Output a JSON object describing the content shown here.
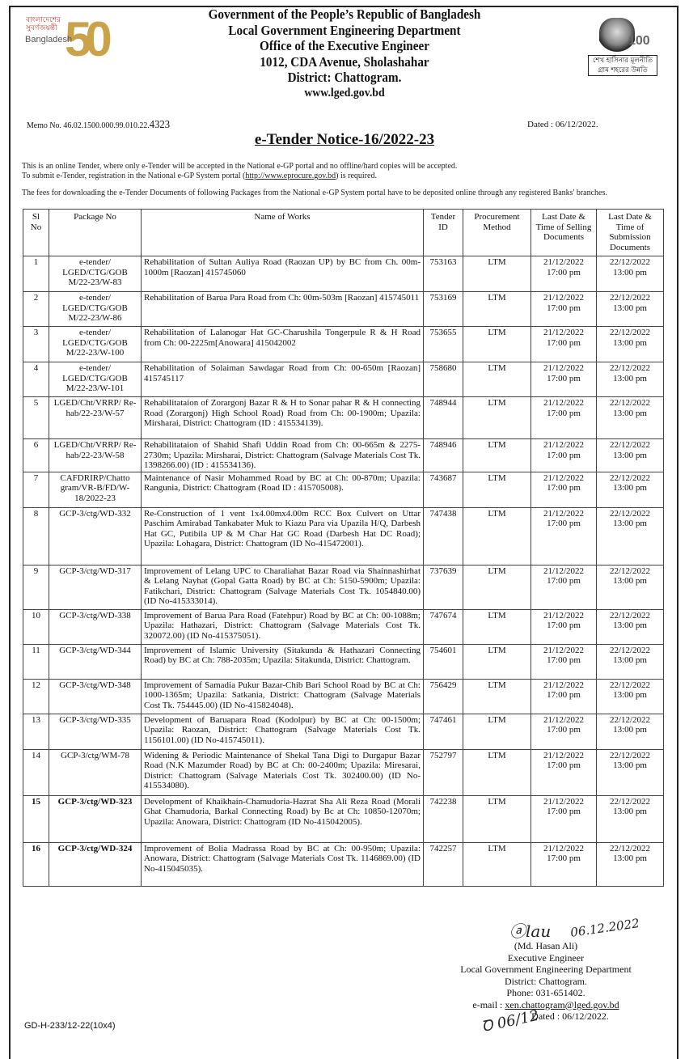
{
  "header": {
    "lines": [
      "Government of the People’s Republic of Bangladesh",
      "Local Government Engineering Department",
      "Office of the Executive Engineer",
      "1012, CDA Avenue, Sholashahar",
      "District: Chattogram."
    ],
    "website": "www.lged.gov.bd",
    "logo_left": {
      "bengali": "বাংলাদেশের সুবর্ণজয়ন্তী",
      "text": "Bangladesh",
      "number": "50"
    },
    "logo_right": {
      "number": "100",
      "slogan_line1": "শেখ হাসিনার মূলনীতি",
      "slogan_line2": "গ্রাম শহরের উন্নতি"
    }
  },
  "memo": {
    "prefix": "Memo No. 46.02.1500.000.99.010.22.",
    "number": "4323",
    "dated": "Dated : 06/12/2022."
  },
  "title": "e-Tender Notice-16/2022-23",
  "intro": {
    "line1": "This is an online Tender, where only e-Tender will be accepted in the National e-GP portal and no offline/hard copies will be accepted.",
    "line2_pre": "To submit e-Tender, registration in the National e-GP System portal (",
    "line2_link": "http://www.eprocure.gov.bd",
    "line2_post": ") is required.",
    "line3": "The fees for downloading the e-Tender Documents of following Packages from the National e-GP System portal have to be deposited online through any registered Banks' branches."
  },
  "table": {
    "headers": [
      "Sl No",
      "Package No",
      "Name of Works",
      "Tender ID",
      "Procurement Method",
      "Last Date & Time of Selling Documents",
      "Last Date & Time of Submission Documents"
    ],
    "rows": [
      {
        "sl": "1",
        "pkg": "e-tender/ LGED/CTG/GOB M/22-23/W-83",
        "name": "Rehabilitation of Sultan Auliya Road (Raozan UP) by BC from Ch. 00m-1000m [Raozan] 415745060",
        "id": "753163",
        "method": "LTM",
        "sell": "21/12/2022 17:00 pm",
        "submit": "22/12/2022 13:00 pm"
      },
      {
        "sl": "2",
        "pkg": "e-tender/ LGED/CTG/GOB M/22-23/W-86",
        "name": "Rehabilitation of Barua Para Road from Ch: 00m-503m [Raozan] 415745011",
        "id": "753169",
        "method": "LTM",
        "sell": "21/12/2022 17:00 pm",
        "submit": "22/12/2022 13:00 pm"
      },
      {
        "sl": "3",
        "pkg": "e-tender/ LGED/CTG/GOB M/22-23/W-100",
        "name": "Rehabilitation of Lalanogar Hat GC-Charushila Tongerpule R & H Road from Ch: 00-2225m[Anowara] 415042002",
        "id": "753655",
        "method": "LTM",
        "sell": "21/12/2022 17:00 pm",
        "submit": "22/12/2022 13:00 pm"
      },
      {
        "sl": "4",
        "pkg": "e-tender/ LGED/CTG/GOB M/22-23/W-101",
        "name": "Rehabilitation of Solaiman Sawdagar Road from Ch: 00-650m [Raozan] 415745117",
        "id": "758680",
        "method": "LTM",
        "sell": "21/12/2022 17:00 pm",
        "submit": "22/12/2022 13:00 pm"
      },
      {
        "sl": "5",
        "pkg": "LGED/Cht/VRRP/ Re-hab/22-23/W-57",
        "name": "Rehabilitataion of Zorargonj Bazar R & H to Sonar pahar R & H connecting Road (Zorargonj) High School Road) Road from Ch: 00-1900m; Upazila: Mirsharai, District: Chattogram (ID : 415534139).",
        "id": "748944",
        "method": "LTM",
        "sell": "21/12/2022 17:00 pm",
        "submit": "22/12/2022 13:00 pm"
      },
      {
        "sl": "6",
        "pkg": "LGED/Cht/VRRP/ Re-hab/22-23/W-58",
        "name": "Rehabilitataion of Shahid Shafi Uddin Road from Ch: 00-665m & 2275-2730m; Upazila: Mirsharai, District: Chattogram (Salvage Materials Cost Tk. 1398266.00) (ID : 415534136).",
        "id": "748946",
        "method": "LTM",
        "sell": "21/12/2022 17:00 pm",
        "submit": "22/12/2022 13:00 pm"
      },
      {
        "sl": "7",
        "pkg": "CAFDRIRP/Chatto gram/VR-B/FD/W-18/2022-23",
        "name": "Maintenance of Nasir Mohammed Road by BC at Ch: 00-870m; Upazila: Rangunia, District: Chattogram (Road ID : 415705008).",
        "id": "743687",
        "method": "LTM",
        "sell": "21/12/2022 17:00 pm",
        "submit": "22/12/2022 13:00 pm"
      },
      {
        "sl": "8",
        "pkg": "GCP-3/ctg/WD-332",
        "name": "Re-Construction of 1 vent 1x4.00mx4.00m RCC Box Culvert on Uttar Paschim Amirabad Tankabater Muk to Kiazu Para via Upazila H/Q, Darbesh Hat GC, Putibila UP & M Char Hat GC Road (Darbesh Hat DC Road); Upazila: Lohagara, District: Chattogram (ID No-415472001).",
        "id": "747438",
        "method": "LTM",
        "sell": "21/12/2022 17:00 pm",
        "submit": "22/12/2022 13:00 pm"
      },
      {
        "sl": "9",
        "pkg": "GCP-3/ctg/WD-317",
        "name": "Improvement of Lelang UPC to Charaliahat Bazar Road via Shainnashirhat & Lelang Nayhat (Gopal Gatta Road) by BC at Ch: 5150-5900m; Upazila: Fatikchari, District: Chattogram (Salvage Materials Cost Tk. 1054840.00) (ID No-415333014).",
        "id": "737639",
        "method": "LTM",
        "sell": "21/12/2022 17:00 pm",
        "submit": "22/12/2022 13:00 pm"
      },
      {
        "sl": "10",
        "pkg": "GCP-3/ctg/WD-338",
        "name": "Improvement of Barua Para Road (Fatehpur) Road by BC at Ch: 00-1088m; Upazila: Hathazari, District: Chattogram (Salvage Materials Cost Tk. 320072.00) (ID No-415375051).",
        "id": "747674",
        "method": "LTM",
        "sell": "21/12/2022 17:00 pm",
        "submit": "22/12/2022 13:00 pm"
      },
      {
        "sl": "11",
        "pkg": "GCP-3/ctg/WD-344",
        "name": "Improvement of Islamic University (Sitakunda & Hathazari Connecting Road) by BC at Ch: 788-2035m; Upazila: Sitakunda, District: Chattogram.",
        "id": "754601",
        "method": "LTM",
        "sell": "21/12/2022 17:00 pm",
        "submit": "22/12/2022 13:00 pm"
      },
      {
        "sl": "12",
        "pkg": "GCP-3/ctg/WD-348",
        "name": "Improvement of Samadia Pukur Bazar-Chib Bari School Road by BC at Ch: 1000-1365m; Upazila: Satkania, District: Chattogram (Salvage Materials Cost Tk. 754445.00) (ID No-415824048).",
        "id": "756429",
        "method": "LTM",
        "sell": "21/12/2022 17:00 pm",
        "submit": "22/12/2022 13:00 pm"
      },
      {
        "sl": "13",
        "pkg": "GCP-3/ctg/WD-335",
        "name": "Development of Baruapara Road (Kodolpur) by BC at Ch: 00-1500m; Upazila: Raozan, District: Chattogram (Salvage Materials Cost Tk. 1156101.00) (ID No-415745011).",
        "id": "747461",
        "method": "LTM",
        "sell": "21/12/2022 17:00 pm",
        "submit": "22/12/2022 13:00 pm"
      },
      {
        "sl": "14",
        "pkg": "GCP-3/ctg/WM-78",
        "name": "Widening & Periodic Maintenance of Shekal Tana Digi to Durgapur Bazar Road (N.K Mazumder Road) by BC at Ch: 00-2400m; Upazila: Miresarai, District: Chattogram (Salvage Materials Cost Tk. 302400.00) (ID No-415534080).",
        "id": "752797",
        "method": "LTM",
        "sell": "21/12/2022 17:00 pm",
        "submit": "22/12/2022 13:00 pm"
      },
      {
        "sl": "15",
        "pkg": "GCP-3/ctg/WD-323",
        "name": "Development of Khaikhain-Chamudoria-Hazrat Sha Ali Reza Road (Morali Ghat Chamudoria, Barkal Connecting Road) by Bc at Ch: 10850-12070m; Upazila: Anowara, District: Chattogram (ID No-415042005).",
        "id": "742238",
        "method": "LTM",
        "sell": "21/12/2022 17:00 pm",
        "submit": "22/12/2022 13:00 pm"
      },
      {
        "sl": "16",
        "pkg": "GCP-3/ctg/WD-324",
        "name": "Improvement of Bolia Madrassa Road by BC at Ch: 00-950m; Upazila: Anowara, District: Chattogram (Salvage Materials Cost Tk. 1146869.00) (ID No-415045035).",
        "id": "742257",
        "method": "LTM",
        "sell": "21/12/2022 17:00 pm",
        "submit": "22/12/2022 13:00 pm"
      }
    ]
  },
  "signature": {
    "handwritten_date": "06.12.2022",
    "name": "(Md. Hasan Ali)",
    "designation": "Executive Engineer",
    "department": "Local Government Engineering Department",
    "district": "District: Chattogram.",
    "phone": "Phone: 031-651402.",
    "email_label": "e-mail : ",
    "email": "xen.chattogram@lged.gov.bd",
    "dated": "Dated : 06/12/2022."
  },
  "footer_code": "GD-H-233/12-22(10x4)"
}
